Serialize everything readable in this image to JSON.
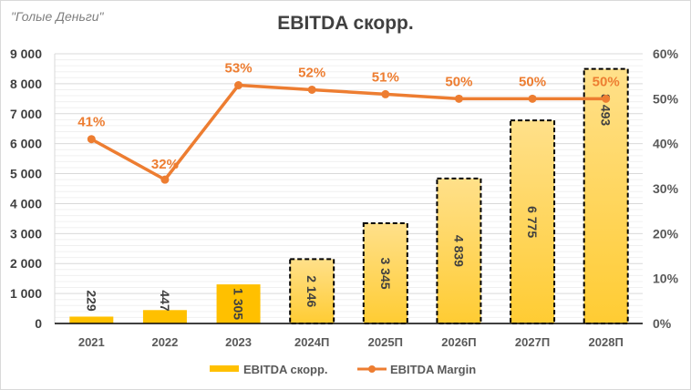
{
  "watermark": "\"Голые Деньги\"",
  "chart_data": {
    "type": "bar+line",
    "title": "EBITDA скорр.",
    "categories": [
      "2021",
      "2022",
      "2023",
      "2024П",
      "2025П",
      "2026П",
      "2027П",
      "2028П"
    ],
    "series": [
      {
        "name": "EBITDA скорр.",
        "type": "bar",
        "axis": "left",
        "values": [
          229,
          447,
          1305,
          2146,
          3345,
          4839,
          6775,
          8493
        ],
        "labels": [
          "229",
          "447",
          "1 305",
          "2 146",
          "3 345",
          "4 839",
          "6 775",
          "8 493"
        ],
        "forecast": [
          false,
          false,
          false,
          true,
          true,
          true,
          true,
          true
        ],
        "color": "#FFC000",
        "forecast_color": "#FFD65C"
      },
      {
        "name": "EBITDA Margin",
        "type": "line",
        "axis": "right",
        "values": [
          41,
          32,
          53,
          52,
          51,
          50,
          50,
          50
        ],
        "labels": [
          "41%",
          "32%",
          "53%",
          "52%",
          "51%",
          "50%",
          "50%",
          "50%"
        ],
        "color": "#ED7D31"
      }
    ],
    "ylim": [
      0,
      9000
    ],
    "yticks": [
      "0",
      "1 000",
      "2 000",
      "3 000",
      "4 000",
      "5 000",
      "6 000",
      "7 000",
      "8 000",
      "9 000"
    ],
    "y2lim": [
      0,
      60
    ],
    "y2ticks": [
      "0%",
      "10%",
      "20%",
      "30%",
      "40%",
      "50%",
      "60%"
    ],
    "grid": true,
    "legend": "bottom"
  }
}
